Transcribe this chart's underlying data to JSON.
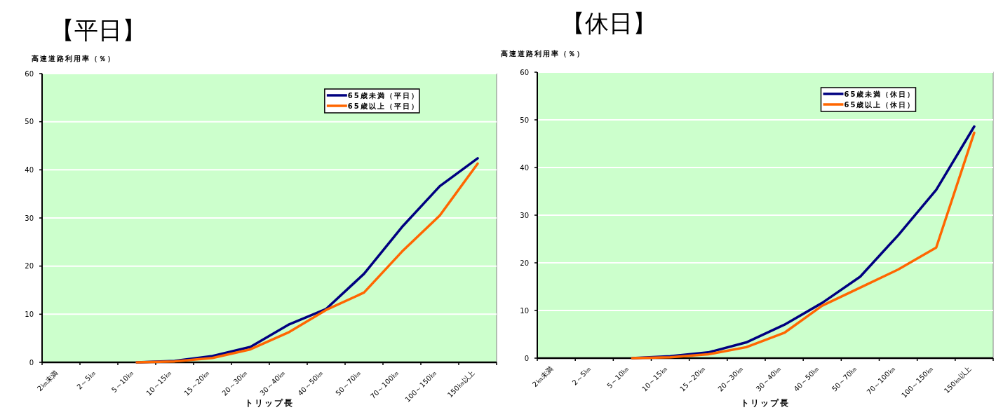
{
  "chart_data": [
    {
      "type": "line",
      "title": "【平日】",
      "ylabel": "高速道路利用率（％）",
      "xlabel": "トリップ長",
      "categories": [
        "2㎞未満",
        "2～5㎞",
        "5～10㎞",
        "10～15㎞",
        "15～20㎞",
        "20～30㎞",
        "30～40㎞",
        "40～50㎞",
        "50～70㎞",
        "70～100㎞",
        "100～150㎞",
        "150㎞以上"
      ],
      "series": [
        {
          "name": "65歳未満（平日）",
          "color": "#000080",
          "values": [
            null,
            null,
            0,
            0.3,
            1.3,
            3.2,
            7.8,
            11.1,
            18.4,
            28.1,
            36.6,
            42.4
          ]
        },
        {
          "name": "65歳以上（平日）",
          "color": "#ff6600",
          "values": [
            null,
            null,
            0,
            0.2,
            0.9,
            2.7,
            6.2,
            10.9,
            14.5,
            23.0,
            30.5,
            41.3
          ]
        }
      ],
      "ylim": [
        0,
        60
      ],
      "yticks": [
        0,
        10,
        20,
        30,
        40,
        50,
        60
      ],
      "grid": "y",
      "legend": "top right"
    },
    {
      "type": "line",
      "title": "【休日】",
      "ylabel": "高速道路利用率（％）",
      "xlabel": "トリップ長",
      "categories": [
        "2㎞未満",
        "2～5㎞",
        "5～10㎞",
        "10～15㎞",
        "15～20㎞",
        "20～30㎞",
        "30～40㎞",
        "40～50㎞",
        "50～70㎞",
        "70～100㎞",
        "100～150㎞",
        "150㎞以上"
      ],
      "series": [
        {
          "name": "65歳未満（休日）",
          "color": "#000080",
          "values": [
            null,
            null,
            0,
            0.4,
            1.2,
            3.3,
            7.0,
            11.6,
            17.1,
            25.8,
            35.3,
            48.6
          ]
        },
        {
          "name": "65歳以上（休日）",
          "color": "#ff6600",
          "values": [
            null,
            null,
            0,
            0.2,
            0.8,
            2.3,
            5.3,
            11.0,
            14.8,
            18.6,
            23.2,
            47.3
          ]
        }
      ],
      "ylim": [
        0,
        60
      ],
      "yticks": [
        0,
        10,
        20,
        30,
        40,
        50,
        60
      ],
      "grid": "y",
      "legend": "top right"
    }
  ]
}
